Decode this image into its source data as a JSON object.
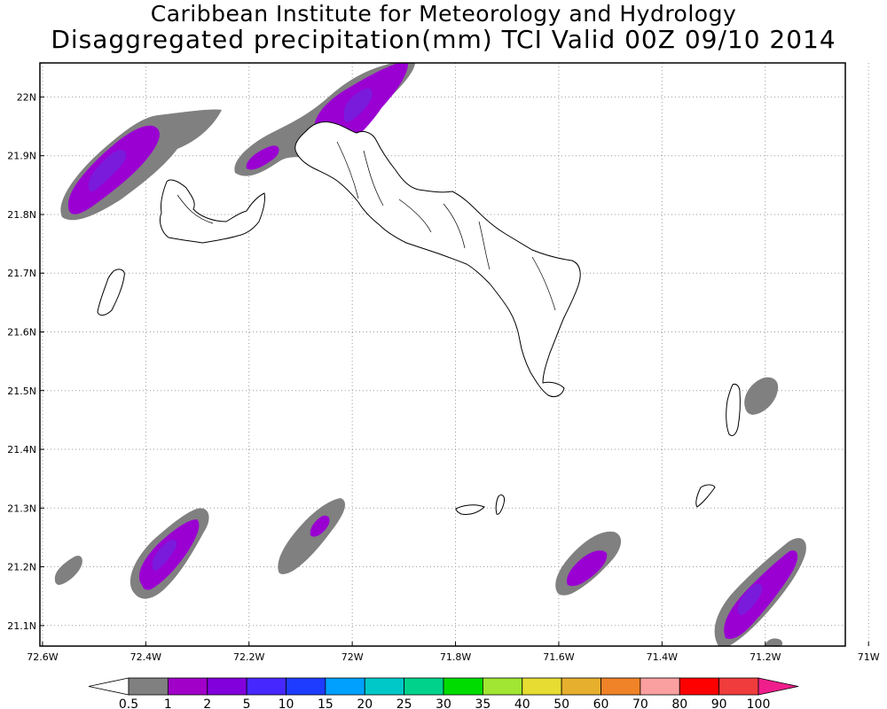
{
  "title": {
    "line1": "Caribbean Institute for Meteorology and Hydrology",
    "line2": "Disaggregated precipitation(mm) TCI Valid 00Z 09/10 2014"
  },
  "map": {
    "lon_range": [
      -72.605,
      -71.045
    ],
    "lat_range": [
      21.065,
      22.058
    ],
    "lat_ticks": [
      {
        "value": 22.0,
        "label": "22N"
      },
      {
        "value": 21.9,
        "label": "21.9N"
      },
      {
        "value": 21.8,
        "label": "21.8N"
      },
      {
        "value": 21.7,
        "label": "21.7N"
      },
      {
        "value": 21.6,
        "label": "21.6N"
      },
      {
        "value": 21.5,
        "label": "21.5N"
      },
      {
        "value": 21.4,
        "label": "21.4N"
      },
      {
        "value": 21.3,
        "label": "21.3N"
      },
      {
        "value": 21.2,
        "label": "21.2N"
      },
      {
        "value": 21.1,
        "label": "21.1N"
      }
    ],
    "lon_ticks": [
      {
        "value": -72.6,
        "label": "72.6W"
      },
      {
        "value": -72.4,
        "label": "72.4W"
      },
      {
        "value": -72.2,
        "label": "72.2W"
      },
      {
        "value": -72.0,
        "label": "72W"
      },
      {
        "value": -71.8,
        "label": "71.8W"
      },
      {
        "value": -71.6,
        "label": "71.6W"
      },
      {
        "value": -71.4,
        "label": "71.4W"
      },
      {
        "value": -71.2,
        "label": "71.2W"
      },
      {
        "value": -71.0,
        "label": "71W"
      }
    ],
    "grid": "dotted",
    "colors": {
      "band_gray": "#808080",
      "band_purple": "#9a00d2",
      "band_violet": "#7a1bdc",
      "coastline": "#000000"
    }
  },
  "colorbar": {
    "labels": [
      "0.5",
      "1",
      "2",
      "5",
      "10",
      "15",
      "20",
      "25",
      "30",
      "35",
      "40",
      "50",
      "60",
      "70",
      "80",
      "90",
      "100"
    ],
    "colors": [
      "#808080",
      "#a000c8",
      "#8200dc",
      "#4628ff",
      "#1e3cff",
      "#00a0ff",
      "#00c8c8",
      "#00d28c",
      "#00dc00",
      "#a0e632",
      "#e6dc32",
      "#e6af2d",
      "#f08228",
      "#faa0a0",
      "#ff0000",
      "#f03c3c",
      "#f01e8c"
    ],
    "left_cap_color": "#ffffff",
    "right_cap_color": "#f01e8c"
  }
}
